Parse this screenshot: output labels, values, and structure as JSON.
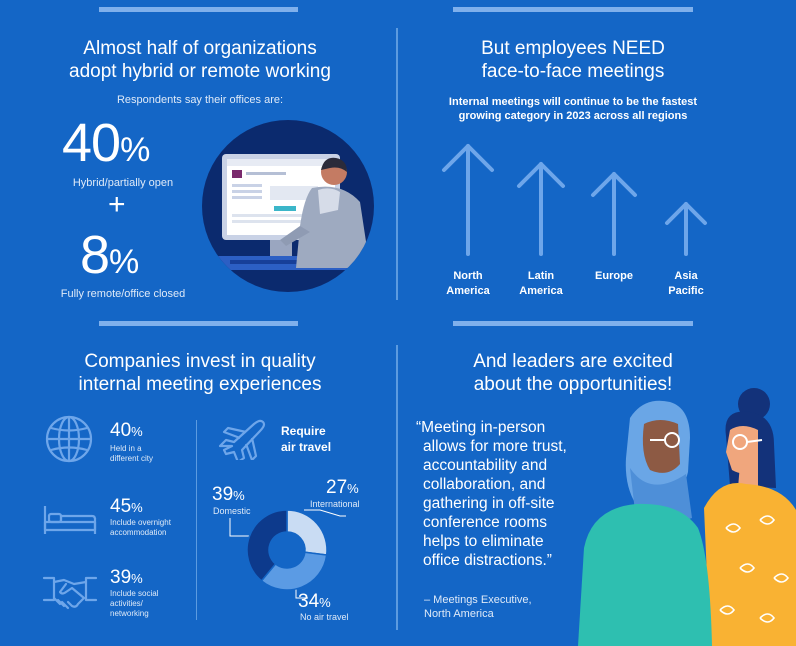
{
  "panel1": {
    "title_line1": "Almost half of organizations",
    "title_line2": "adopt hybrid or remote working",
    "subtitle": "Respondents say their offices are:",
    "stat1_value": "40",
    "stat1_label": "Hybrid/partially open",
    "plus": "+",
    "stat2_value": "8",
    "stat2_label": "Fully remote/office closed",
    "percent_sign": "%"
  },
  "panel2": {
    "title_line1": "But employees NEED",
    "title_line2": "face-to-face meetings",
    "subtitle_line1": "Internal meetings will continue to be the fastest",
    "subtitle_line2": "growing category in 2023 across all regions",
    "regions": [
      {
        "line1": "North",
        "line2": "America"
      },
      {
        "line1": "Latin",
        "line2": "America"
      },
      {
        "line1": "Europe",
        "line2": ""
      },
      {
        "line1": "Asia",
        "line2": "Pacific"
      }
    ]
  },
  "panel3": {
    "title_line1": "Companies invest in quality",
    "title_line2": "internal meeting experiences",
    "stats": [
      {
        "value": "40",
        "desc_line1": "Held in a",
        "desc_line2": "different city",
        "desc_line3": ""
      },
      {
        "value": "45",
        "desc_line1": "Include overnight",
        "desc_line2": "accommodation",
        "desc_line3": ""
      },
      {
        "value": "39",
        "desc_line1": "Include social",
        "desc_line2": "activities/",
        "desc_line3": "networking"
      }
    ],
    "air_title_line1": "Require",
    "air_title_line2": "air travel",
    "donut": {
      "domestic_value": "39",
      "domestic_label": "Domestic",
      "international_value": "27",
      "international_label": "International",
      "none_value": "34",
      "none_label": "No air travel"
    },
    "colors": {
      "domestic": "#0d3a8c",
      "international": "#c9dcf3",
      "none": "#5b9be4"
    }
  },
  "panel4": {
    "title_line1": "And leaders are excited",
    "title_line2": "about the opportunities!",
    "quote_lines": [
      "“Meeting in-person",
      "allows for more trust,",
      "accountability and",
      "collaboration, and",
      "gathering in off-site",
      "conference rooms",
      "helps to eliminate",
      "office distractions.”"
    ],
    "attribution_line1": "– Meetings Executive,",
    "attribution_line2": "North America"
  }
}
